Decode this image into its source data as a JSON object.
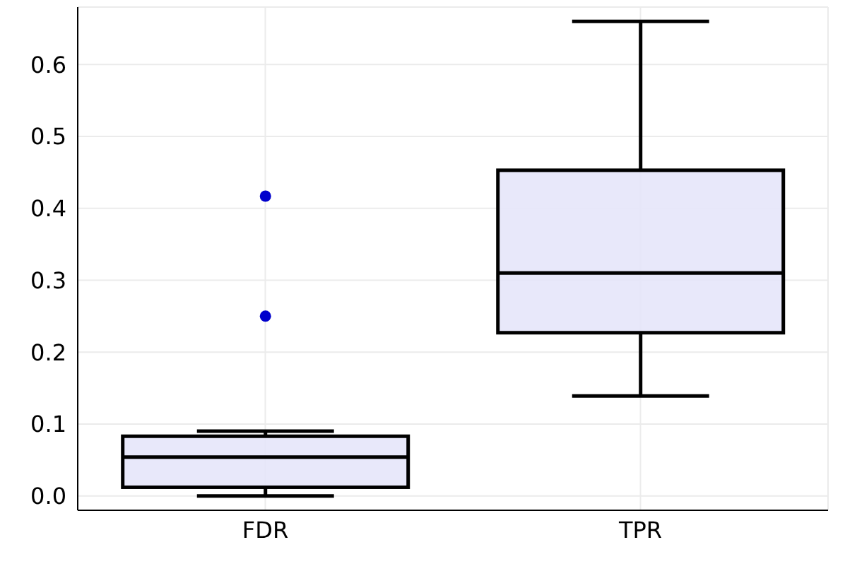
{
  "chart_data": {
    "type": "box",
    "categories": [
      "FDR",
      "TPR"
    ],
    "color": "#e6e6fa",
    "boxes": [
      {
        "low": 0.0,
        "q1": 0.012,
        "median": 0.054,
        "q3": 0.083,
        "high": 0.09,
        "outliers": [
          0.25,
          0.417
        ]
      },
      {
        "low": 0.139,
        "q1": 0.227,
        "median": 0.31,
        "q3": 0.453,
        "high": 0.66
      }
    ],
    "ylim": [
      -0.02,
      0.68
    ],
    "yticks": [
      {
        "value": 0,
        "label": "0.0"
      },
      {
        "value": 0.1,
        "label": "0.1"
      },
      {
        "value": 0.2,
        "label": "0.2"
      },
      {
        "value": 0.3,
        "label": "0.3"
      },
      {
        "value": 0.4,
        "label": "0.4"
      },
      {
        "value": 0.5,
        "label": "0.5"
      },
      {
        "value": 0.6,
        "label": "0.6"
      }
    ],
    "grid": true,
    "legend": false
  }
}
